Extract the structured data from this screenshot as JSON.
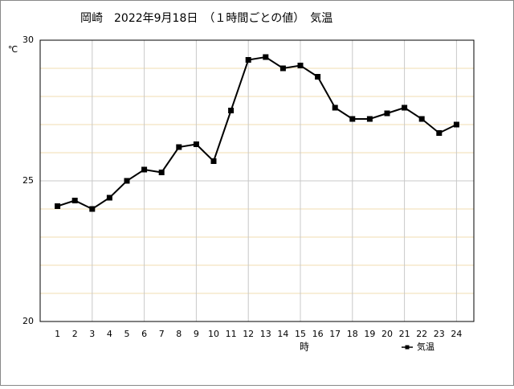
{
  "chart_data": {
    "type": "line",
    "title": "岡崎　2022年9月18日　（１時間ごとの値）　気温",
    "y_label": "℃",
    "x_label": "時",
    "categories": [
      "1",
      "2",
      "3",
      "4",
      "5",
      "6",
      "7",
      "8",
      "9",
      "10",
      "11",
      "12",
      "13",
      "14",
      "15",
      "16",
      "17",
      "18",
      "19",
      "20",
      "21",
      "22",
      "23",
      "24"
    ],
    "series": [
      {
        "name": "気温",
        "color": "#000000",
        "values": [
          24.1,
          24.3,
          24.0,
          24.4,
          25.0,
          25.4,
          25.3,
          26.2,
          26.3,
          25.7,
          27.5,
          29.3,
          29.4,
          29.0,
          29.1,
          28.7,
          27.6,
          27.2,
          27.2,
          27.4,
          27.6,
          27.2,
          26.7,
          27.0
        ]
      }
    ],
    "ylim": [
      20,
      30
    ],
    "yticks": [
      20,
      25,
      30
    ],
    "yminor_ticks": [
      21,
      22,
      23,
      24,
      26,
      27,
      28,
      29
    ],
    "xgrid_every": 3,
    "grid": true,
    "legend": "bottom-right"
  }
}
